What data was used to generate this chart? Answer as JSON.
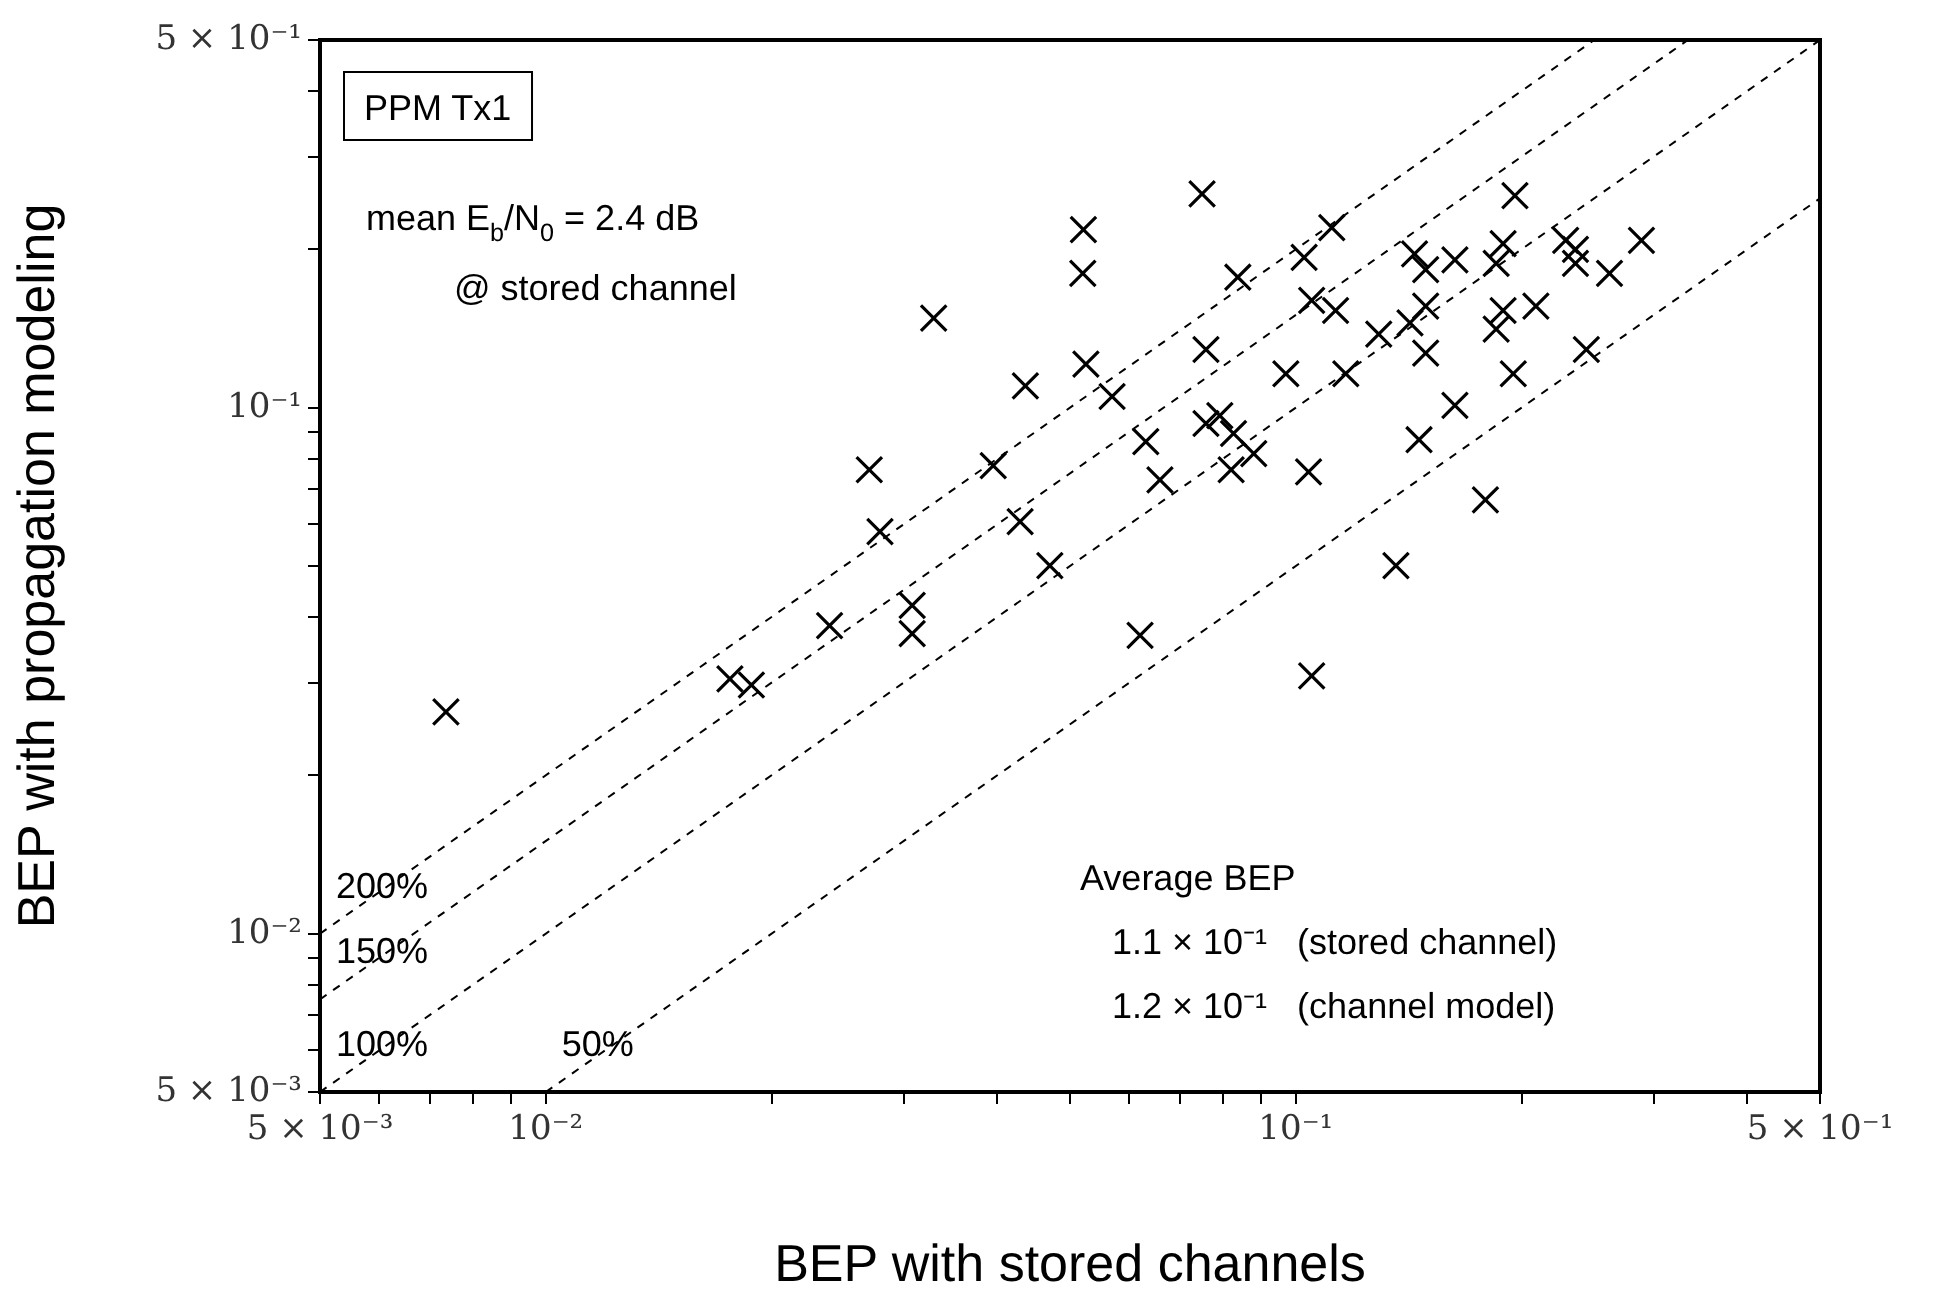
{
  "chart_data": {
    "type": "scatter",
    "xlabel": "BEP with stored channels",
    "ylabel": "BEP with propagation modeling",
    "log": "xy",
    "grid": false,
    "legend": false,
    "xlim": [
      0.005,
      0.5
    ],
    "ylim": [
      0.005,
      0.5
    ],
    "xticks": [
      {
        "value": 0.005,
        "label": "5 × 10⁻³"
      },
      {
        "value": 0.006,
        "label": null
      },
      {
        "value": 0.007,
        "label": null
      },
      {
        "value": 0.008,
        "label": null
      },
      {
        "value": 0.009,
        "label": null
      },
      {
        "value": 0.01,
        "label": "10⁻²"
      },
      {
        "value": 0.02,
        "label": null
      },
      {
        "value": 0.03,
        "label": null
      },
      {
        "value": 0.04,
        "label": null
      },
      {
        "value": 0.05,
        "label": null
      },
      {
        "value": 0.06,
        "label": null
      },
      {
        "value": 0.07,
        "label": null
      },
      {
        "value": 0.08,
        "label": null
      },
      {
        "value": 0.09,
        "label": null
      },
      {
        "value": 0.1,
        "label": "10⁻¹"
      },
      {
        "value": 0.2,
        "label": null
      },
      {
        "value": 0.3,
        "label": null
      },
      {
        "value": 0.4,
        "label": null
      },
      {
        "value": 0.5,
        "label": "5 × 10⁻¹"
      }
    ],
    "yticks": [
      {
        "value": 0.005,
        "label": "5 × 10⁻³"
      },
      {
        "value": 0.006,
        "label": null
      },
      {
        "value": 0.007,
        "label": null
      },
      {
        "value": 0.008,
        "label": null
      },
      {
        "value": 0.009,
        "label": null
      },
      {
        "value": 0.01,
        "label": "10⁻²"
      },
      {
        "value": 0.02,
        "label": null
      },
      {
        "value": 0.03,
        "label": null
      },
      {
        "value": 0.04,
        "label": null
      },
      {
        "value": 0.05,
        "label": null
      },
      {
        "value": 0.06,
        "label": null
      },
      {
        "value": 0.07,
        "label": null
      },
      {
        "value": 0.08,
        "label": null
      },
      {
        "value": 0.09,
        "label": null
      },
      {
        "value": 0.1,
        "label": "10⁻¹"
      },
      {
        "value": 0.2,
        "label": null
      },
      {
        "value": 0.3,
        "label": null
      },
      {
        "value": 0.4,
        "label": null
      },
      {
        "value": 0.5,
        "label": "5 × 10⁻¹"
      }
    ],
    "series": [
      {
        "type": "scatter",
        "marker": "cross",
        "color": "#000000",
        "x": [
          0.0521,
          0.052,
          0.0329,
          0.0436,
          0.0525,
          0.027,
          0.0395,
          0.0279,
          0.0429,
          0.047,
          0.0239,
          0.0308,
          0.0308,
          0.0176,
          0.0188,
          0.00736,
          0.075,
          0.0569,
          0.0759,
          0.0631,
          0.0659,
          0.0759,
          0.0792,
          0.0826,
          0.082,
          0.0879,
          0.097,
          0.104,
          0.062,
          0.105,
          0.0837,
          0.1026,
          0.1117,
          0.105,
          0.113,
          0.1166,
          0.129,
          0.142,
          0.149,
          0.149,
          0.144,
          0.149,
          0.163,
          0.163,
          0.146,
          0.179,
          0.136,
          0.196,
          0.189,
          0.185,
          0.189,
          0.185,
          0.209,
          0.195,
          0.229,
          0.236,
          0.236,
          0.262,
          0.289,
          0.244
        ],
        "values": [
          0.218,
          0.18,
          0.148,
          0.11,
          0.121,
          0.0762,
          0.0776,
          0.0581,
          0.0607,
          0.0501,
          0.0385,
          0.0421,
          0.0372,
          0.0305,
          0.0297,
          0.0264,
          0.255,
          0.105,
          0.129,
          0.0862,
          0.0729,
          0.0933,
          0.0966,
          0.0893,
          0.0762,
          0.0818,
          0.116,
          0.0755,
          0.0369,
          0.0309,
          0.177,
          0.193,
          0.22,
          0.16,
          0.153,
          0.116,
          0.138,
          0.145,
          0.156,
          0.127,
          0.196,
          0.183,
          0.191,
          0.101,
          0.0869,
          0.0668,
          0.0501,
          0.253,
          0.205,
          0.188,
          0.153,
          0.141,
          0.156,
          0.116,
          0.208,
          0.2,
          0.188,
          0.18,
          0.208,
          0.129
        ]
      },
      {
        "type": "line",
        "name": "200%",
        "color": "#000000",
        "line_style": "dashed",
        "x": [
          0.005,
          0.25
        ],
        "values": [
          0.01,
          0.5
        ]
      },
      {
        "type": "line",
        "name": "150%",
        "color": "#000000",
        "line_style": "dashed",
        "x": [
          0.005,
          0.3333
        ],
        "values": [
          0.0075,
          0.5
        ]
      },
      {
        "type": "line",
        "name": "100%",
        "color": "#000000",
        "line_style": "dashed",
        "x": [
          0.005,
          0.5
        ],
        "values": [
          0.005,
          0.5
        ]
      },
      {
        "type": "line",
        "name": "50%",
        "color": "#000000",
        "line_style": "dashed",
        "x": [
          0.01,
          0.5
        ],
        "values": [
          0.005,
          0.25
        ]
      }
    ],
    "annotations": [
      "PPM Tx1",
      "mean E$_{b}$/N$_{0}$ = 2.4 dB",
      "@ stored channel",
      "Average BEP",
      "1.1 × 10⁻¹   (stored channel)",
      "1.2 × 10⁻¹   (channel model)"
    ]
  }
}
